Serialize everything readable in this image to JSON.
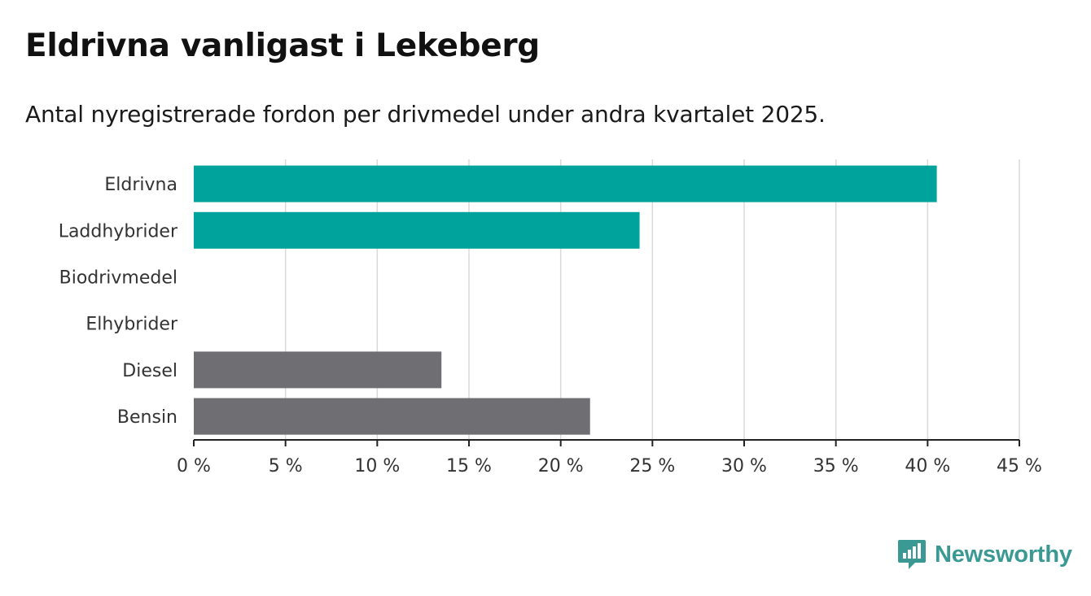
{
  "header": {
    "title": "Eldrivna vanligast i Lekeberg",
    "subtitle": "Antal nyregistrerade fordon per drivmedel under andra kvartalet 2025."
  },
  "brand": {
    "name": "Newsworthy",
    "icon": "newsworthy-logo-icon",
    "color": "#3a9a93"
  },
  "colors": {
    "highlight": "#00a39b",
    "neutral": "#6e6e73",
    "grid": "#d9d9d9",
    "axis": "#222222"
  },
  "chart_data": {
    "type": "bar",
    "orientation": "horizontal",
    "title": "Eldrivna vanligast i Lekeberg",
    "subtitle": "Antal nyregistrerade fordon per drivmedel under andra kvartalet 2025.",
    "categories": [
      "Eldrivna",
      "Laddhybrider",
      "Biodrivmedel",
      "Elhybrider",
      "Diesel",
      "Bensin"
    ],
    "values": [
      40.5,
      24.3,
      0,
      0,
      13.5,
      21.6
    ],
    "bar_colors": [
      "#00a39b",
      "#00a39b",
      "#00a39b",
      "#00a39b",
      "#6e6e73",
      "#6e6e73"
    ],
    "xlim": [
      0,
      45
    ],
    "xticks": [
      0,
      5,
      10,
      15,
      20,
      25,
      30,
      35,
      40,
      45
    ],
    "tick_labels": [
      "0 %",
      "5 %",
      "10 %",
      "15 %",
      "20 %",
      "25 %",
      "30 %",
      "35 %",
      "40 %",
      "45 %"
    ],
    "xlabel": "",
    "ylabel": "",
    "grid": "vertical",
    "legend": "none"
  }
}
